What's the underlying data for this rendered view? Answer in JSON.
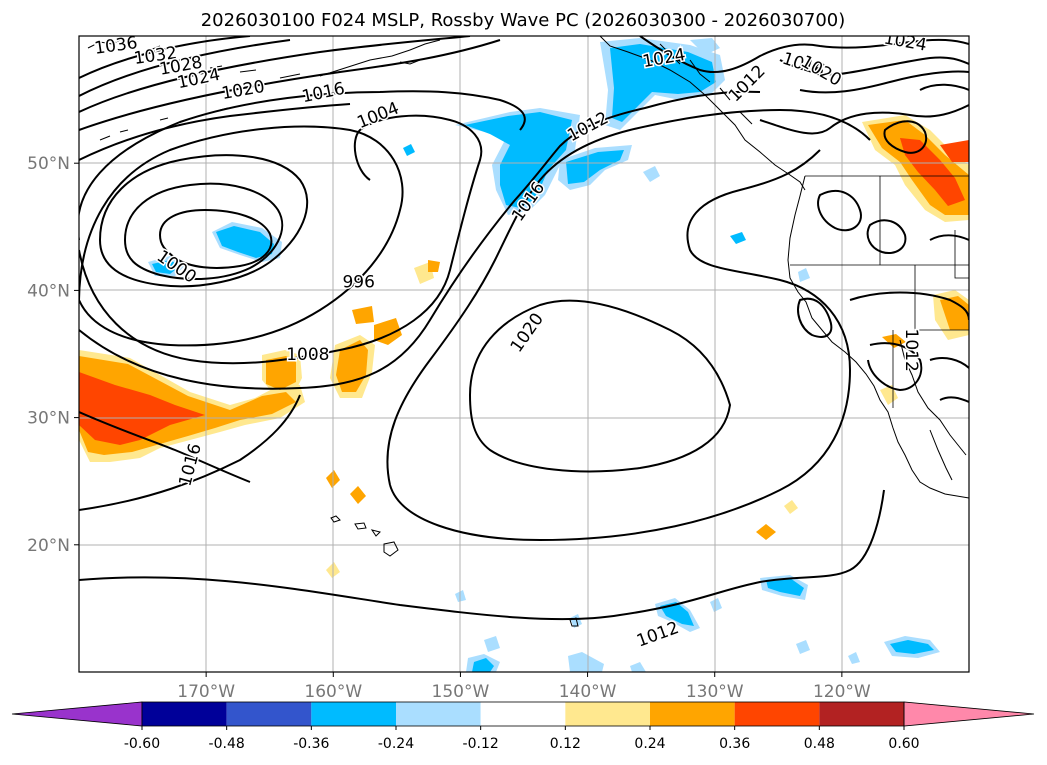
{
  "title": "2026030100 F024 MSLP, Rossby Wave PC (2026030300 - 2026030700)",
  "map": {
    "lon_ticks": [
      {
        "lon": -170,
        "label": "170°W"
      },
      {
        "lon": -160,
        "label": "160°W"
      },
      {
        "lon": -150,
        "label": "150°W"
      },
      {
        "lon": -140,
        "label": "140°W"
      },
      {
        "lon": -130,
        "label": "130°W"
      },
      {
        "lon": -120,
        "label": "120°W"
      }
    ],
    "lat_ticks": [
      {
        "lat": 50,
        "label": "50°N"
      },
      {
        "lat": 40,
        "label": "40°N"
      },
      {
        "lat": 30,
        "label": "30°N"
      },
      {
        "lat": 20,
        "label": "20°N"
      }
    ],
    "lon_range": [
      -180,
      -110
    ],
    "lat_range": [
      10,
      60
    ]
  },
  "contour_labels": [
    {
      "text": "1036",
      "lon": -177.1,
      "lat": 59.3,
      "rot": -8
    },
    {
      "text": "1032",
      "lon": -174.0,
      "lat": 58.5,
      "rot": -8
    },
    {
      "text": "1028",
      "lon": -172.0,
      "lat": 57.7,
      "rot": -10
    },
    {
      "text": "1024",
      "lon": -170.6,
      "lat": 56.7,
      "rot": -12
    },
    {
      "text": "1020",
      "lon": -167.1,
      "lat": 55.8,
      "rot": -10
    },
    {
      "text": "1016",
      "lon": -160.8,
      "lat": 55.6,
      "rot": -12
    },
    {
      "text": "1004",
      "lon": -156.5,
      "lat": 53.8,
      "rot": -22
    },
    {
      "text": "1012",
      "lon": -140.0,
      "lat": 52.9,
      "rot": -28
    },
    {
      "text": "1024",
      "lon": -134.0,
      "lat": 58.3,
      "rot": -10
    },
    {
      "text": "1012",
      "lon": -127.5,
      "lat": 56.3,
      "rot": -45
    },
    {
      "text": "1016",
      "lon": -123.0,
      "lat": 57.8,
      "rot": 18
    },
    {
      "text": "1020",
      "lon": -121.6,
      "lat": 57.3,
      "rot": 30
    },
    {
      "text": "1024",
      "lon": -115.0,
      "lat": 59.6,
      "rot": 10
    },
    {
      "text": "996",
      "lon": -158.0,
      "lat": 40.7,
      "rot": 0
    },
    {
      "text": "1000",
      "lon": -172.3,
      "lat": 41.9,
      "rot": 35
    },
    {
      "text": "1008",
      "lon": -162.0,
      "lat": 35.0,
      "rot": 0
    },
    {
      "text": "1016",
      "lon": -144.7,
      "lat": 47.0,
      "rot": -55
    },
    {
      "text": "1020",
      "lon": -144.8,
      "lat": 36.7,
      "rot": -55
    },
    {
      "text": "1016",
      "lon": -171.3,
      "lat": 26.3,
      "rot": -75
    },
    {
      "text": "1012",
      "lon": -134.5,
      "lat": 13.0,
      "rot": -20
    },
    {
      "text": "1012",
      "lon": -114.5,
      "lat": 35.3,
      "rot": 90
    }
  ],
  "colorbar": {
    "ticks": [
      "-0.60",
      "-0.48",
      "-0.36",
      "-0.24",
      "-0.12",
      "0.12",
      "0.24",
      "0.36",
      "0.48",
      "0.60"
    ],
    "colors": [
      "#9933cc",
      "#000099",
      "#3355cc",
      "#00bbff",
      "#aadeff",
      "#ffffff",
      "#ffe88f",
      "#ffa500",
      "#ff4500",
      "#b22222",
      "#ff88aa"
    ]
  }
}
